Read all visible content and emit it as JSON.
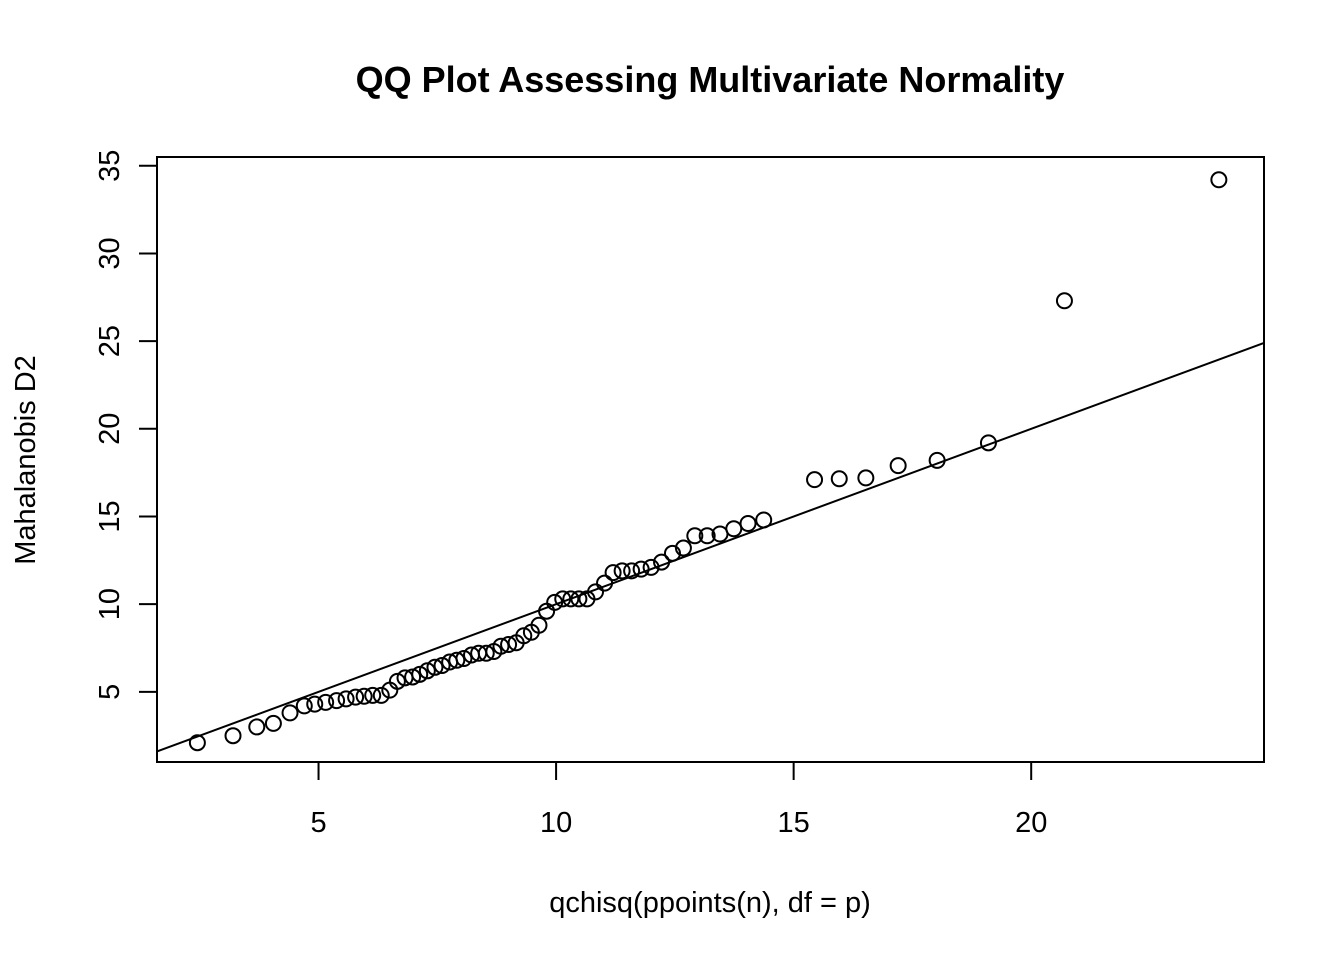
{
  "chart_data": {
    "type": "scatter",
    "title": "QQ Plot Assessing Multivariate Normality",
    "xlabel": "qchisq(ppoints(n), df = p)",
    "ylabel": "Mahalanobis D2",
    "xlim": [
      1.6,
      24.9
    ],
    "ylim": [
      1.0,
      35.5
    ],
    "xticks": [
      5,
      10,
      15,
      20
    ],
    "yticks": [
      5,
      10,
      15,
      20,
      25,
      30,
      35
    ],
    "grid": false,
    "legend": null,
    "marker": "open-circle",
    "reference_line": {
      "slope": 1,
      "intercept": 0
    },
    "points": [
      [
        2.45,
        2.1
      ],
      [
        3.2,
        2.5
      ],
      [
        3.7,
        3.0
      ],
      [
        4.05,
        3.2
      ],
      [
        4.4,
        3.8
      ],
      [
        4.7,
        4.2
      ],
      [
        4.92,
        4.3
      ],
      [
        5.15,
        4.4
      ],
      [
        5.38,
        4.5
      ],
      [
        5.58,
        4.6
      ],
      [
        5.78,
        4.7
      ],
      [
        5.96,
        4.75
      ],
      [
        6.14,
        4.8
      ],
      [
        6.32,
        4.8
      ],
      [
        6.5,
        5.1
      ],
      [
        6.66,
        5.6
      ],
      [
        6.82,
        5.8
      ],
      [
        6.98,
        5.85
      ],
      [
        7.13,
        6.0
      ],
      [
        7.29,
        6.2
      ],
      [
        7.45,
        6.4
      ],
      [
        7.6,
        6.5
      ],
      [
        7.76,
        6.7
      ],
      [
        7.91,
        6.8
      ],
      [
        8.06,
        6.9
      ],
      [
        8.22,
        7.1
      ],
      [
        8.37,
        7.2
      ],
      [
        8.53,
        7.2
      ],
      [
        8.69,
        7.3
      ],
      [
        8.84,
        7.6
      ],
      [
        9.0,
        7.7
      ],
      [
        9.16,
        7.8
      ],
      [
        9.32,
        8.2
      ],
      [
        9.48,
        8.4
      ],
      [
        9.64,
        8.8
      ],
      [
        9.8,
        9.6
      ],
      [
        9.97,
        10.1
      ],
      [
        10.14,
        10.3
      ],
      [
        10.31,
        10.3
      ],
      [
        10.48,
        10.3
      ],
      [
        10.65,
        10.3
      ],
      [
        10.83,
        10.7
      ],
      [
        11.02,
        11.2
      ],
      [
        11.2,
        11.8
      ],
      [
        11.39,
        11.9
      ],
      [
        11.59,
        11.9
      ],
      [
        11.79,
        12.0
      ],
      [
        12.0,
        12.1
      ],
      [
        12.22,
        12.4
      ],
      [
        12.45,
        12.9
      ],
      [
        12.68,
        13.2
      ],
      [
        12.92,
        13.9
      ],
      [
        13.18,
        13.9
      ],
      [
        13.45,
        14.0
      ],
      [
        13.74,
        14.3
      ],
      [
        14.04,
        14.6
      ],
      [
        14.37,
        14.8
      ],
      [
        15.44,
        17.1
      ],
      [
        15.96,
        17.15
      ],
      [
        16.52,
        17.2
      ],
      [
        17.2,
        17.9
      ],
      [
        18.02,
        18.2
      ],
      [
        19.1,
        19.2
      ],
      [
        20.7,
        27.3
      ],
      [
        23.95,
        34.2
      ]
    ]
  }
}
